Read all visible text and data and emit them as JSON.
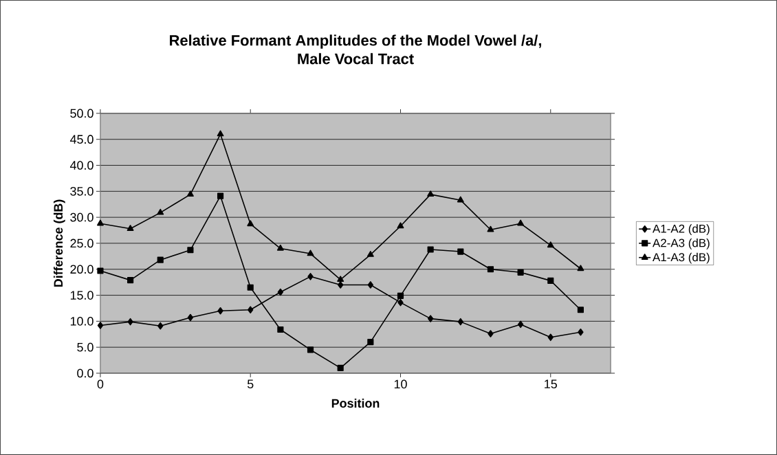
{
  "chart_data": {
    "type": "line",
    "title": "Relative Formant Amplitudes of the Model Vowel /a/,\nMale Vocal Tract",
    "xlabel": "Position",
    "ylabel": "Difference (dB)",
    "x": [
      0,
      1,
      2,
      3,
      4,
      5,
      6,
      7,
      8,
      9,
      10,
      11,
      12,
      13,
      14,
      15,
      16
    ],
    "series": [
      {
        "name": "A1-A2 (dB)",
        "color": "#000000",
        "marker": "diamond",
        "values": [
          9.2,
          9.9,
          9.1,
          10.7,
          12.0,
          12.2,
          15.6,
          18.6,
          17.0,
          17.0,
          13.6,
          10.5,
          9.9,
          7.6,
          9.4,
          6.9,
          7.9
        ]
      },
      {
        "name": "A2-A3 (dB)",
        "color": "#000000",
        "marker": "square",
        "values": [
          19.7,
          17.9,
          21.8,
          23.7,
          34.1,
          16.5,
          8.4,
          4.5,
          1.0,
          6.0,
          14.9,
          23.8,
          23.4,
          20.0,
          19.4,
          17.8,
          12.2
        ]
      },
      {
        "name": "A1-A3 (dB)",
        "color": "#000000",
        "marker": "triangle",
        "values": [
          28.8,
          27.8,
          30.9,
          34.4,
          46.0,
          28.7,
          24.0,
          23.0,
          18.0,
          22.8,
          28.3,
          34.4,
          33.3,
          27.6,
          28.8,
          24.6,
          20.1
        ]
      }
    ],
    "xlim": [
      0,
      17
    ],
    "xticks": [
      0,
      5,
      10,
      15
    ],
    "ylim": [
      0,
      50
    ],
    "yticks": [
      {
        "value": 0,
        "label": "0.0"
      },
      {
        "value": 5,
        "label": "5.0"
      },
      {
        "value": 10,
        "label": "10.0"
      },
      {
        "value": 15,
        "label": "15.0"
      },
      {
        "value": 20,
        "label": "20.0"
      },
      {
        "value": 25,
        "label": "25.0"
      },
      {
        "value": 30,
        "label": "30.0"
      },
      {
        "value": 35,
        "label": "35.0"
      },
      {
        "value": 40,
        "label": "40.0"
      },
      {
        "value": 45,
        "label": "45.0"
      },
      {
        "value": 50,
        "label": "50.0"
      }
    ],
    "grid": "y",
    "legend": "right",
    "line_style": "solid"
  }
}
